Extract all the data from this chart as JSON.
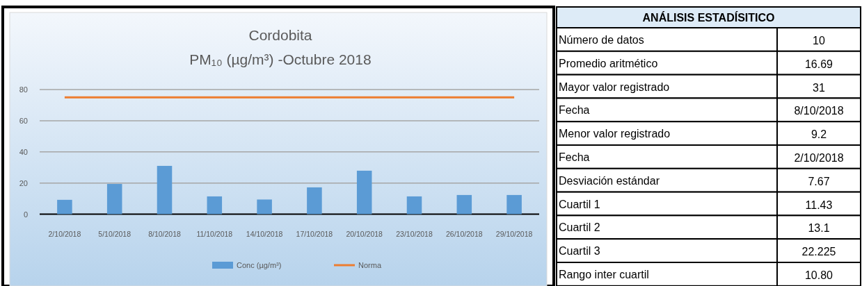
{
  "chart_data": [
    {
      "type": "bar",
      "title": "Cordobita",
      "subtitle": "PM₁₀ (µg/m³) -Octubre 2018",
      "categories": [
        "2/10/2018",
        "5/10/2018",
        "8/10/2018",
        "11/10/2018",
        "14/10/2018",
        "17/10/2018",
        "20/10/2018",
        "23/10/2018",
        "26/10/2018",
        "29/10/2018"
      ],
      "series": [
        {
          "name": "Conc (µg/m³)",
          "type": "bar",
          "color": "#5b9bd5",
          "values": [
            9.2,
            19.4,
            31,
            11.4,
            9.4,
            17.2,
            27.9,
            11.4,
            12.3,
            12.3
          ]
        },
        {
          "name": "Norma",
          "type": "line",
          "color": "#ed7d31",
          "values": [
            75,
            75,
            75,
            75,
            75,
            75,
            75,
            75,
            75,
            75
          ]
        }
      ],
      "ylim": [
        0,
        80
      ],
      "yticks": [
        0,
        20,
        40,
        60,
        80
      ],
      "grid": "y",
      "legend": "bottom"
    },
    {
      "type": "other",
      "title": "ANÁLISIS ESTADÍSITICO",
      "categories": [
        "Número de datos",
        "Promedio aritmético",
        "Mayor valor registrado",
        "Fecha",
        "Menor valor registrado",
        "Fecha",
        "Desviación estándar",
        "Cuartil 1",
        "Cuartil 2",
        "Cuartil 3",
        "Rango inter cuartil"
      ],
      "value_labels": [
        "10",
        "16.69",
        "31",
        "8/10/2018",
        "9.2",
        "2/10/2018",
        "7.67",
        "11.43",
        "13.1",
        "22.225",
        "10.80"
      ]
    }
  ]
}
